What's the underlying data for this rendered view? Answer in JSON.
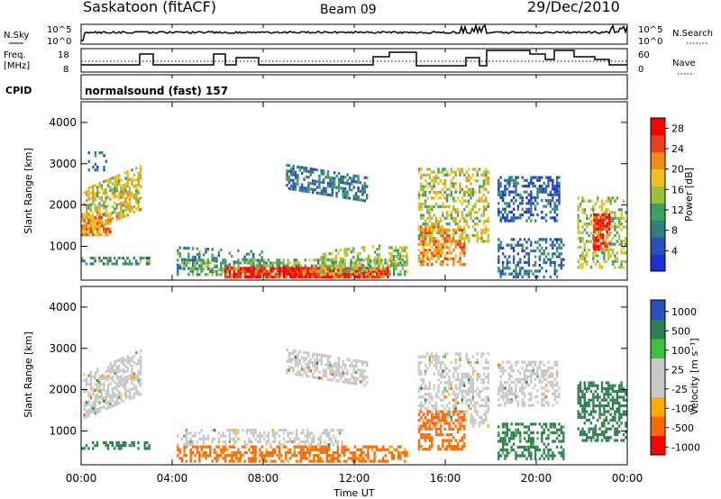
{
  "header": {
    "station": "Saskatoon (fitACF)",
    "beam": "Beam 09",
    "date": "29/Dec/2010"
  },
  "noise_panel": {
    "left_label": "N.Sky",
    "right_label": "N.Search",
    "left_ticks": [
      "10^5",
      "10^0"
    ],
    "right_ticks": [
      "10^5",
      "10^0"
    ]
  },
  "freq_panel": {
    "left_label_line1": "Freq.",
    "left_label_line2": "[MHz]",
    "left_ticks": [
      "18",
      "8"
    ],
    "right_label": "Nave",
    "right_ticks": [
      "60",
      "0"
    ]
  },
  "cpid_panel": {
    "label": "CPID",
    "value": "normalsound (fast) 157"
  },
  "colors": {
    "power": [
      "#1a2fd6",
      "#2f4fb8",
      "#2f7f7f",
      "#3f9f5f",
      "#9fbf3f",
      "#f0c020",
      "#f08c1a",
      "#e8401c",
      "#ff0000"
    ],
    "velocity": [
      "#ff0000",
      "#ff6a00",
      "#ffaa00",
      "#c8c8c8",
      "#c8c8c8",
      "#3fbf3f",
      "#2f7f4f",
      "#2a4fbf"
    ],
    "gs_grey": "#bdbdbd"
  },
  "chart_data": [
    {
      "type": "heatmap",
      "title": "",
      "xlabel": "Time UT",
      "ylabel": "Slant Range [km]",
      "x_ticks": [
        "00:00",
        "04:00",
        "08:00",
        "12:00",
        "16:00",
        "20:00",
        "00:00"
      ],
      "xlim_hours": [
        0,
        24
      ],
      "ylim": [
        180,
        4500
      ],
      "y_ticks": [
        1000,
        2000,
        3000,
        4000
      ],
      "colorbar": {
        "label": "Power [dB]",
        "ticks": [
          4,
          8,
          12,
          16,
          20,
          24,
          28
        ],
        "range": [
          0,
          30
        ]
      },
      "blobs": [
        {
          "t0": 0.1,
          "t1": 2.6,
          "r0": 1300,
          "r1": 2400,
          "v": 17,
          "d": 0.65,
          "slope": 0.42
        },
        {
          "t0": 0.0,
          "t1": 1.3,
          "r0": 1250,
          "r1": 1800,
          "v": 22,
          "d": 0.75,
          "slope": 0.0
        },
        {
          "t0": 0.2,
          "t1": 1.2,
          "r0": 2850,
          "r1": 3300,
          "v": 6,
          "d": 0.25,
          "slope": 0.0
        },
        {
          "t0": 0.0,
          "t1": 3.0,
          "r0": 550,
          "r1": 750,
          "v": 10,
          "d": 0.55,
          "slope": 0.0
        },
        {
          "t0": 4.2,
          "t1": 8.0,
          "r0": 450,
          "r1": 1000,
          "v": 9,
          "d": 0.3,
          "slope": -0.05
        },
        {
          "t0": 4.2,
          "t1": 14.3,
          "r0": 300,
          "r1": 700,
          "v": 12,
          "d": 0.55,
          "slope": 0.0
        },
        {
          "t0": 6.3,
          "t1": 13.5,
          "r0": 250,
          "r1": 500,
          "v": 26,
          "d": 0.9,
          "slope": 0.0
        },
        {
          "t0": 9.0,
          "t1": 12.6,
          "r0": 2400,
          "r1": 3000,
          "v": 8,
          "d": 0.6,
          "slope": -0.16
        },
        {
          "t0": 10.5,
          "t1": 13.2,
          "r0": 300,
          "r1": 900,
          "v": 15,
          "d": 0.45,
          "slope": 0.1
        },
        {
          "t0": 13.5,
          "t1": 14.3,
          "r0": 550,
          "r1": 1000,
          "v": 14,
          "d": 0.6,
          "slope": 0.0
        },
        {
          "t0": 14.8,
          "t1": 17.9,
          "r0": 1100,
          "r1": 2900,
          "v": 16,
          "d": 0.45,
          "slope": 0.0
        },
        {
          "t0": 14.8,
          "t1": 16.8,
          "r0": 550,
          "r1": 1500,
          "v": 21,
          "d": 0.6,
          "slope": 0.0
        },
        {
          "t0": 18.3,
          "t1": 21.0,
          "r0": 1650,
          "r1": 2700,
          "v": 6,
          "d": 0.45,
          "slope": 0.0
        },
        {
          "t0": 18.3,
          "t1": 21.2,
          "r0": 250,
          "r1": 1200,
          "v": 8,
          "d": 0.4,
          "slope": 0.0
        },
        {
          "t0": 21.8,
          "t1": 23.9,
          "r0": 500,
          "r1": 2200,
          "v": 15,
          "d": 0.45,
          "slope": 0.0
        },
        {
          "t0": 22.5,
          "t1": 23.2,
          "r0": 900,
          "r1": 1800,
          "v": 26,
          "d": 0.8,
          "slope": 0.0
        }
      ]
    },
    {
      "type": "heatmap",
      "title": "",
      "xlabel": "Time UT",
      "ylabel": "Slant Range [km]",
      "x_ticks": [
        "00:00",
        "04:00",
        "08:00",
        "12:00",
        "16:00",
        "20:00",
        "00:00"
      ],
      "xlim_hours": [
        0,
        24
      ],
      "ylim": [
        180,
        4500
      ],
      "y_ticks": [
        1000,
        2000,
        3000,
        4000
      ],
      "colorbar": {
        "label": "Velocity [m s⁻¹]",
        "ticks": [
          "1000",
          "500",
          "100",
          "25",
          "-25",
          "-100",
          "-500",
          "-1000"
        ]
      },
      "blobs": [
        {
          "t0": 0.1,
          "t1": 2.6,
          "r0": 1300,
          "r1": 2400,
          "v": 0,
          "d": 0.6,
          "slope": 0.42
        },
        {
          "t0": 0.0,
          "t1": 3.0,
          "r0": 550,
          "r1": 750,
          "v": 150,
          "d": 0.5,
          "slope": 0.0
        },
        {
          "t0": 4.2,
          "t1": 14.3,
          "r0": 300,
          "r1": 650,
          "v": -150,
          "d": 0.55,
          "slope": 0.0
        },
        {
          "t0": 4.2,
          "t1": 11.5,
          "r0": 700,
          "r1": 1050,
          "v": 0,
          "d": 0.4,
          "slope": 0.0
        },
        {
          "t0": 9.0,
          "t1": 12.6,
          "r0": 2400,
          "r1": 3000,
          "v": 0,
          "d": 0.55,
          "slope": -0.16
        },
        {
          "t0": 14.8,
          "t1": 17.9,
          "r0": 1100,
          "r1": 2900,
          "v": 0,
          "d": 0.45,
          "slope": 0.0
        },
        {
          "t0": 14.8,
          "t1": 16.8,
          "r0": 550,
          "r1": 1500,
          "v": -200,
          "d": 0.5,
          "slope": 0.0
        },
        {
          "t0": 18.3,
          "t1": 21.0,
          "r0": 1650,
          "r1": 2700,
          "v": 0,
          "d": 0.45,
          "slope": 0.0
        },
        {
          "t0": 18.3,
          "t1": 21.2,
          "r0": 350,
          "r1": 1200,
          "v": 150,
          "d": 0.45,
          "slope": 0.0
        },
        {
          "t0": 21.8,
          "t1": 23.9,
          "r0": 800,
          "r1": 2200,
          "v": 200,
          "d": 0.5,
          "slope": 0.0
        }
      ]
    }
  ]
}
